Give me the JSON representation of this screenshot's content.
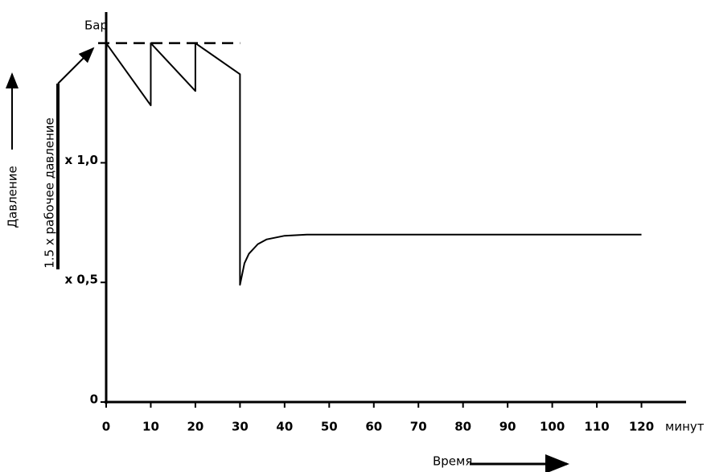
{
  "chart_data": {
    "type": "line",
    "y_label": "Давление",
    "y_unit": "Бар",
    "x_label": "Время",
    "x_unit": "минут",
    "annotation": "1.5 x рабочее давление",
    "x": [
      0,
      10,
      10,
      20,
      20,
      30,
      30,
      31,
      32,
      34,
      36,
      40,
      45,
      50,
      60,
      80,
      100,
      120
    ],
    "series": [
      {
        "color": "#000000",
        "values": [
          1.5,
          1.24,
          1.5,
          1.3,
          1.5,
          1.37,
          0.49,
          0.58,
          0.62,
          0.66,
          0.68,
          0.695,
          0.7,
          0.7,
          0.7,
          0.7,
          0.7,
          0.7
        ]
      }
    ],
    "reference_line": {
      "x": [
        0,
        30
      ],
      "y": 1.5,
      "dashed": true
    },
    "xlim": [
      0,
      130
    ],
    "ylim": [
      0,
      1.63
    ],
    "xticks": [
      0,
      10,
      20,
      30,
      40,
      50,
      60,
      70,
      80,
      90,
      100,
      110,
      120
    ],
    "yticks": [
      0,
      {
        "value": 0.5,
        "label": "x 0,5"
      },
      {
        "value": 1.0,
        "label": "x 1,0"
      }
    ]
  }
}
